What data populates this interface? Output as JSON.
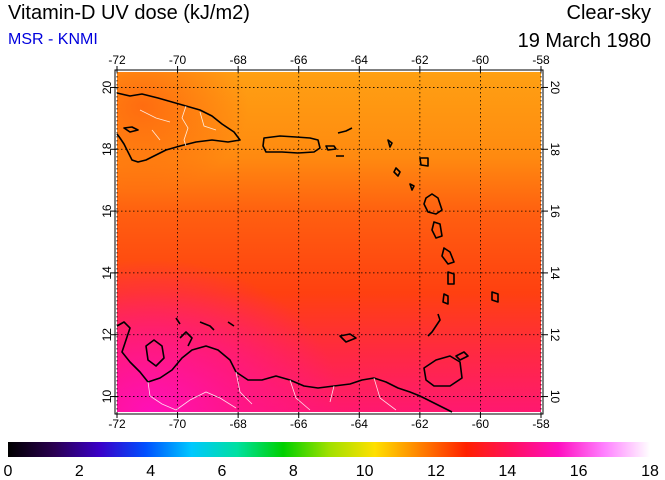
{
  "header": {
    "title": "Vitamin-D UV dose (kJ/m2)",
    "subtitle": "MSR - KNMI",
    "condition": "Clear-sky",
    "date": "19 March 1980"
  },
  "map": {
    "lon_range": [
      -72,
      -58
    ],
    "lat_range": [
      9.5,
      20.5
    ],
    "lon_ticks": [
      "-72",
      "-70",
      "-68",
      "-66",
      "-64",
      "-62",
      "-60",
      "-58"
    ],
    "lat_ticks": [
      "10",
      "12",
      "14",
      "16",
      "18",
      "20"
    ],
    "gridlines": true,
    "colors": {
      "north": "#ff9c10",
      "middle": "#ff4a10",
      "south": "#ff1e6a",
      "southwest": "#ff18a0"
    }
  },
  "colorbar": {
    "min": 0,
    "max": 18,
    "ticks": [
      "0",
      "2",
      "4",
      "6",
      "8",
      "10",
      "12",
      "14",
      "16",
      "18"
    ],
    "colors": [
      "#000000",
      "#2a0050",
      "#3a00c8",
      "#0050ff",
      "#00c8ff",
      "#00e0a0",
      "#00d000",
      "#a0e000",
      "#ffe000",
      "#ff8000",
      "#ff2000",
      "#ff1060",
      "#ff10c0",
      "#ff80ff",
      "#ffffff"
    ]
  }
}
